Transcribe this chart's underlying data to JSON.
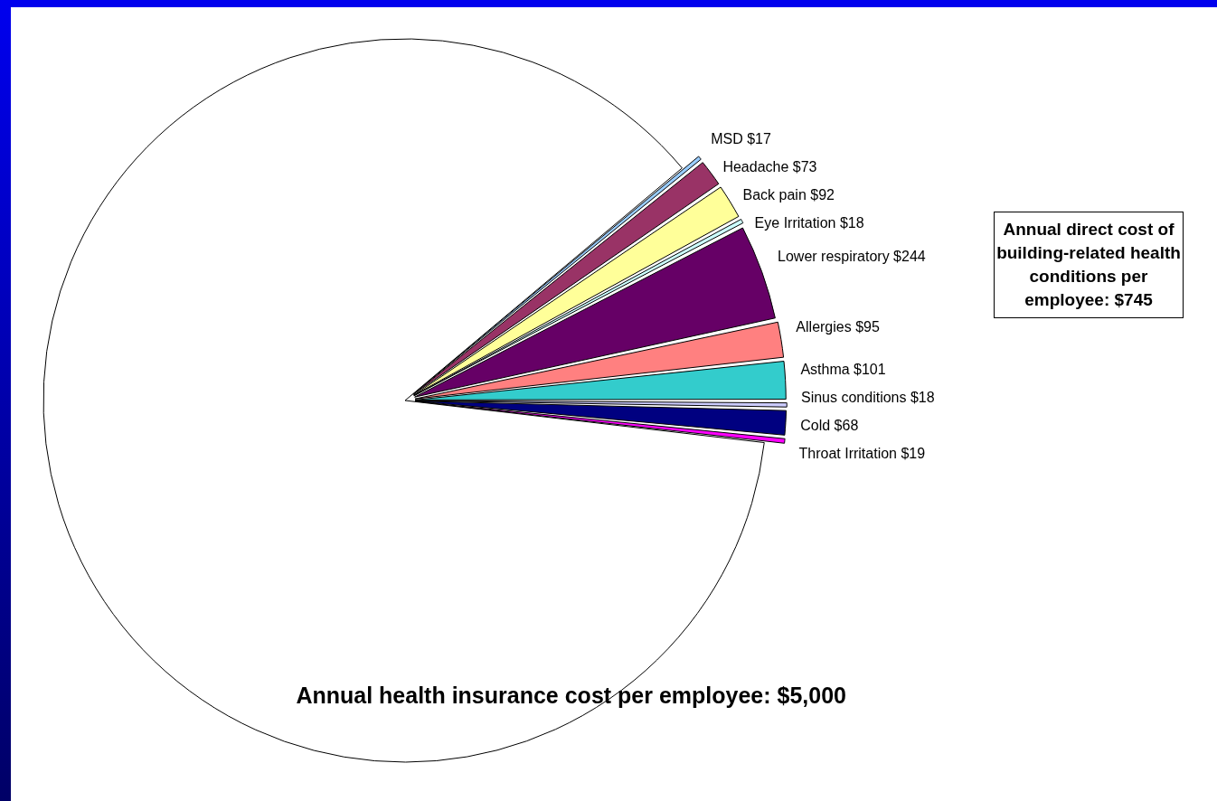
{
  "chart_data": {
    "type": "pie",
    "categories": [
      "MSD",
      "Headache",
      "Back pain",
      "Eye Irritation",
      "Lower respiratory",
      "Allergies",
      "Asthma",
      "Sinus conditions",
      "Cold",
      "Throat Irritation",
      "Annual health insurance cost per employee"
    ],
    "values": [
      17,
      73,
      92,
      18,
      244,
      95,
      101,
      18,
      68,
      19,
      5000
    ],
    "value_labels": [
      "$17",
      "$73",
      "$92",
      "$18",
      "$244",
      "$95",
      "$101",
      "$18",
      "$68",
      "$19",
      "$5,000"
    ],
    "colors": [
      "#99ccff",
      "#993366",
      "#ffff99",
      "#ccffff",
      "#660066",
      "#ff8080",
      "#33cccc",
      "#ccccff",
      "#000080",
      "#ff00ff",
      "#ffffff"
    ],
    "annotations": [
      "Annual direct cost of building-related health conditions per employee: $745"
    ],
    "legend": false
  }
}
